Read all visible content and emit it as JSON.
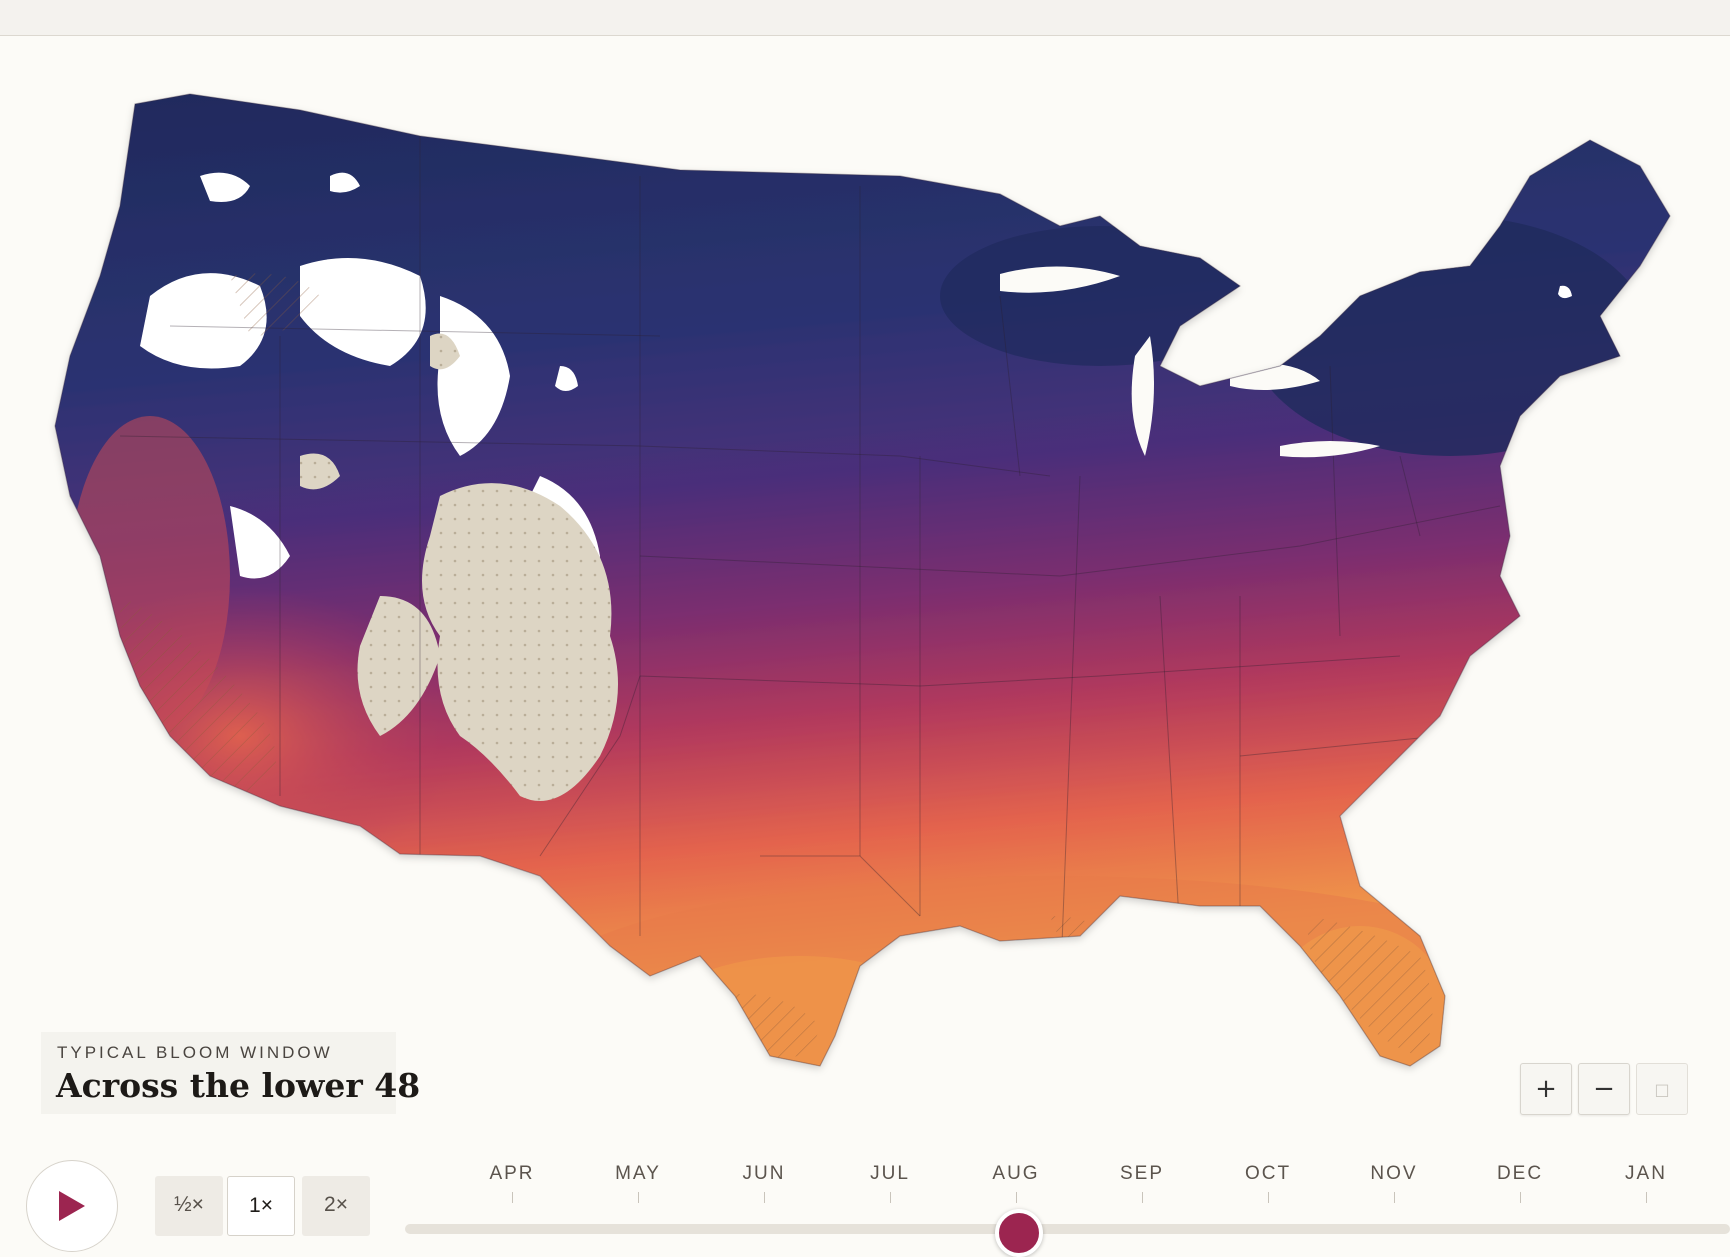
{
  "title_card": {
    "kicker": "TYPICAL BLOOM WINDOW",
    "title": "Across the lower 48"
  },
  "map": {
    "region": "Contiguous United States",
    "color_scale": [
      "#1f2a5c",
      "#2f3474",
      "#4a2f7a",
      "#7b2d6f",
      "#b33a5c",
      "#e4644d",
      "#f09a4a"
    ],
    "no_data_colors": [
      "#ffffff",
      "#ddd5c4"
    ],
    "hatch_pattern": "diagonal-lines"
  },
  "zoom_controls": {
    "zoom_in": "+",
    "zoom_out": "−",
    "reset": "□"
  },
  "playback": {
    "play_icon": "play-icon",
    "speeds": [
      "½×",
      "1×",
      "2×"
    ],
    "active_speed": "1×"
  },
  "timeline": {
    "months": [
      "APR",
      "MAY",
      "JUN",
      "JUL",
      "AUG",
      "SEP",
      "OCT",
      "NOV",
      "DEC",
      "JAN"
    ],
    "current_fraction": 0.46,
    "accent": "#9c2550"
  }
}
